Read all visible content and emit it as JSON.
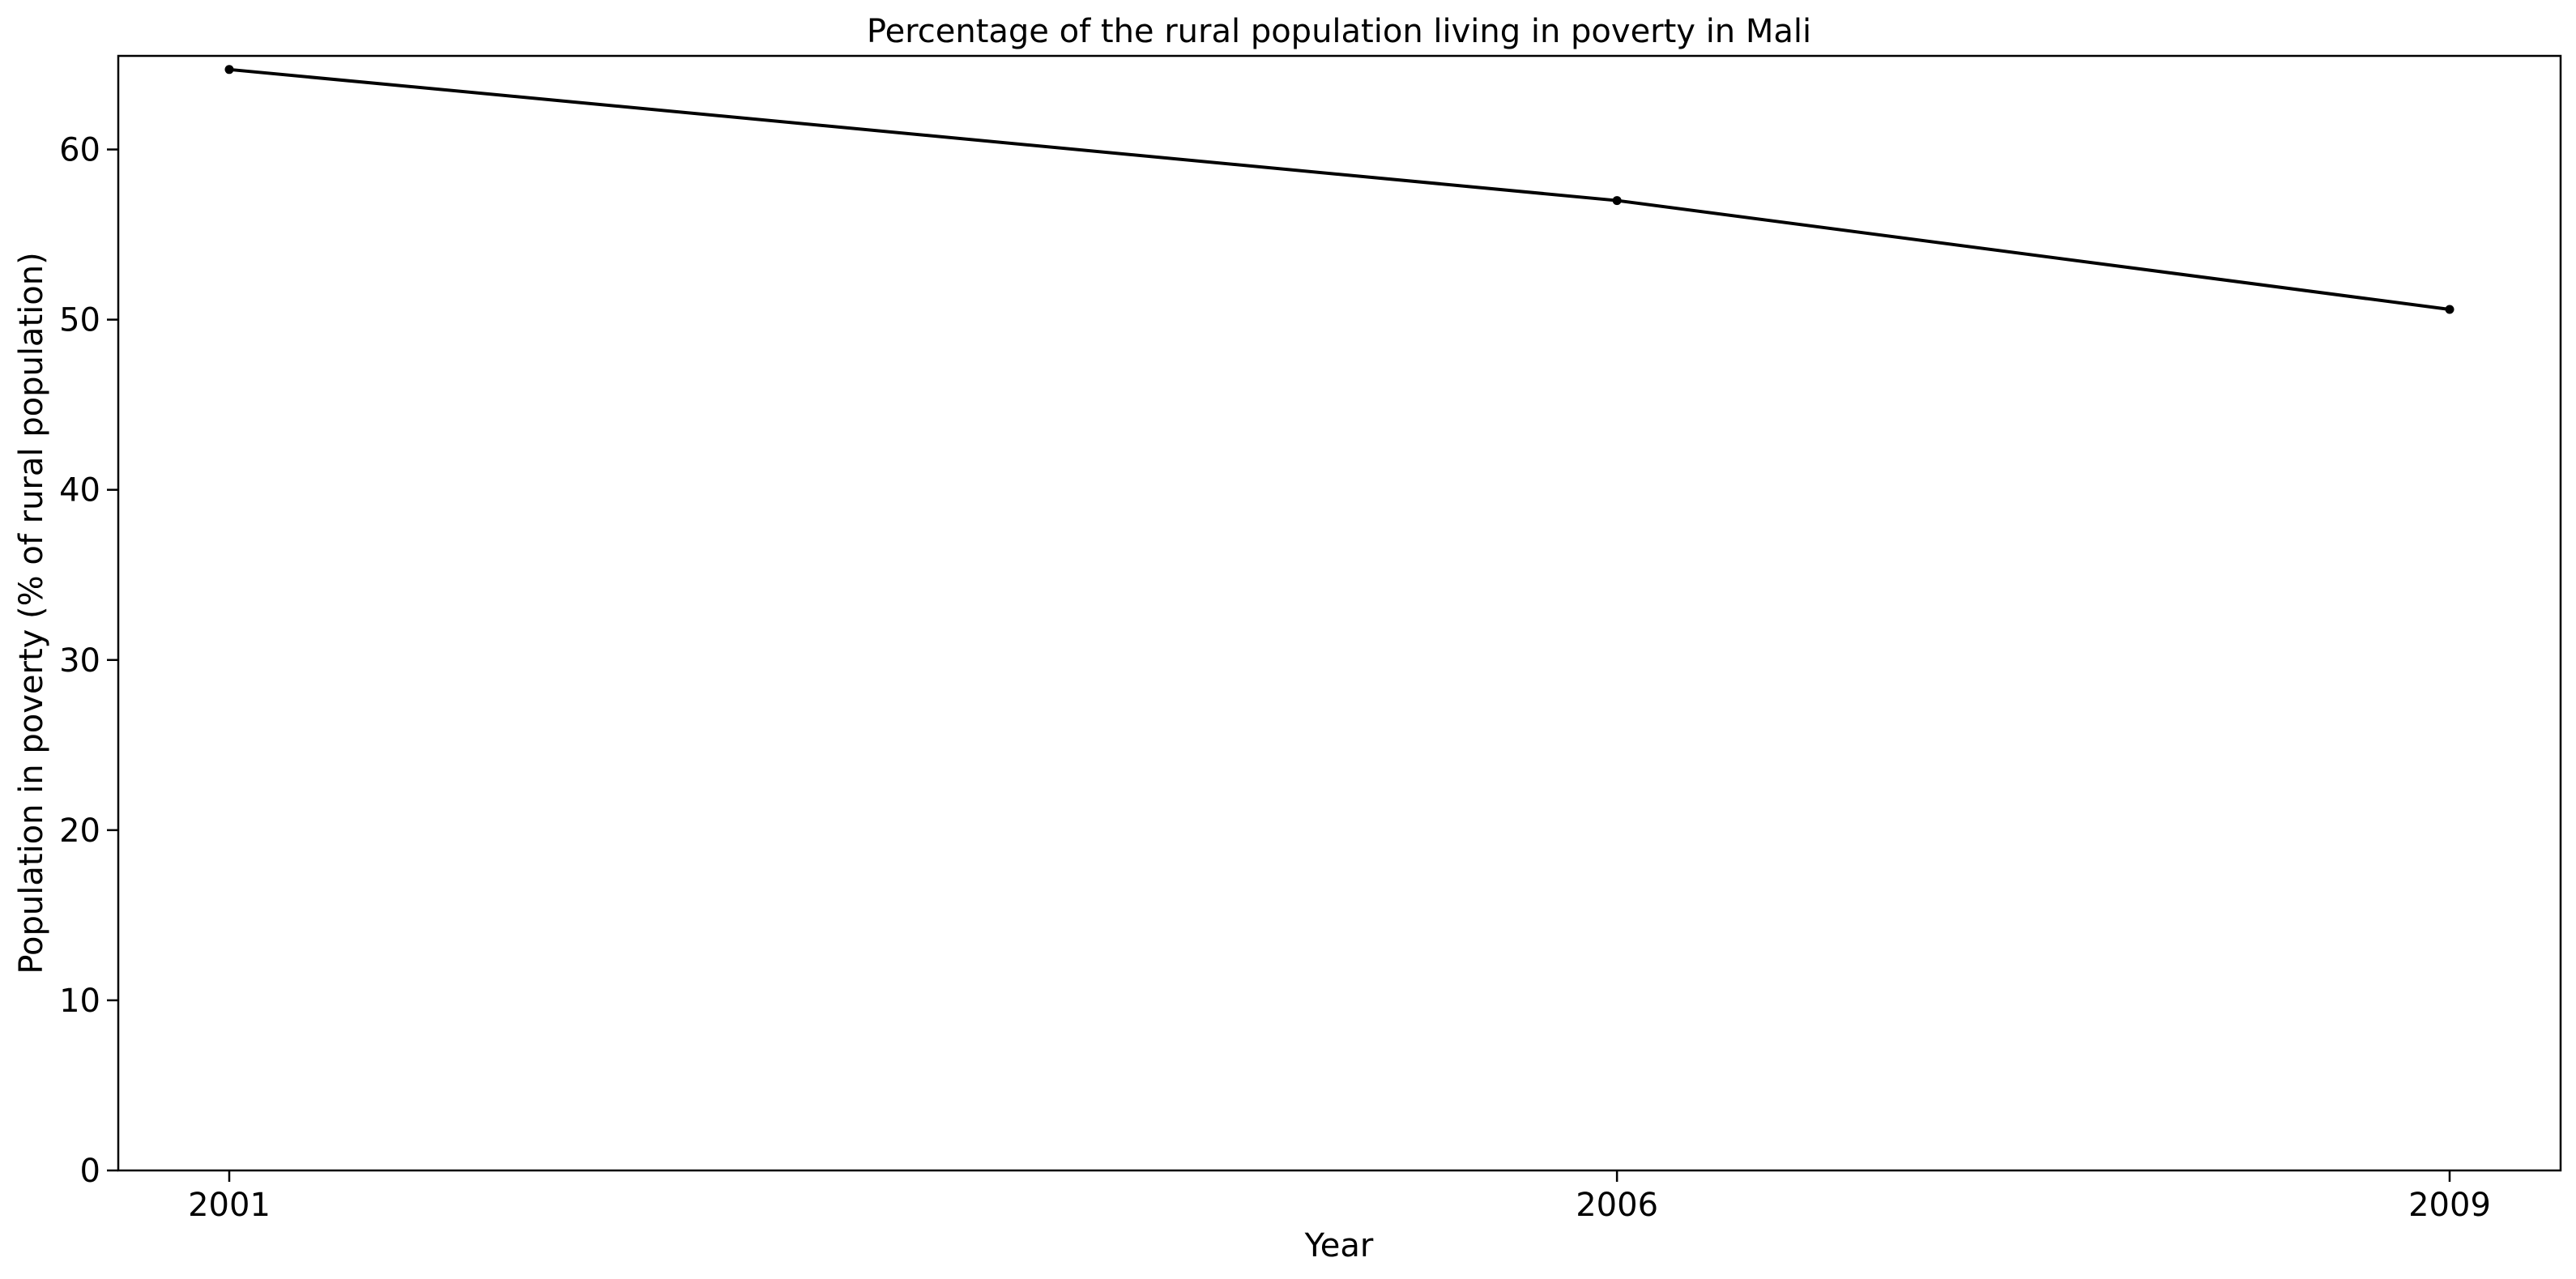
{
  "chart_data": {
    "type": "line",
    "title": "Percentage of the rural population living in poverty in Mali",
    "xlabel": "Year",
    "ylabel": "Population in poverty (% of rural population)",
    "categories": [
      "2001",
      "2006",
      "2009"
    ],
    "series": [
      {
        "values": [
          64.7,
          57.0,
          50.6
        ],
        "color": "#000000"
      }
    ],
    "ylim": [
      0,
      65.5
    ],
    "yticks": [
      0,
      10,
      20,
      30,
      40,
      50,
      60
    ],
    "grid": false,
    "legend": "none"
  }
}
